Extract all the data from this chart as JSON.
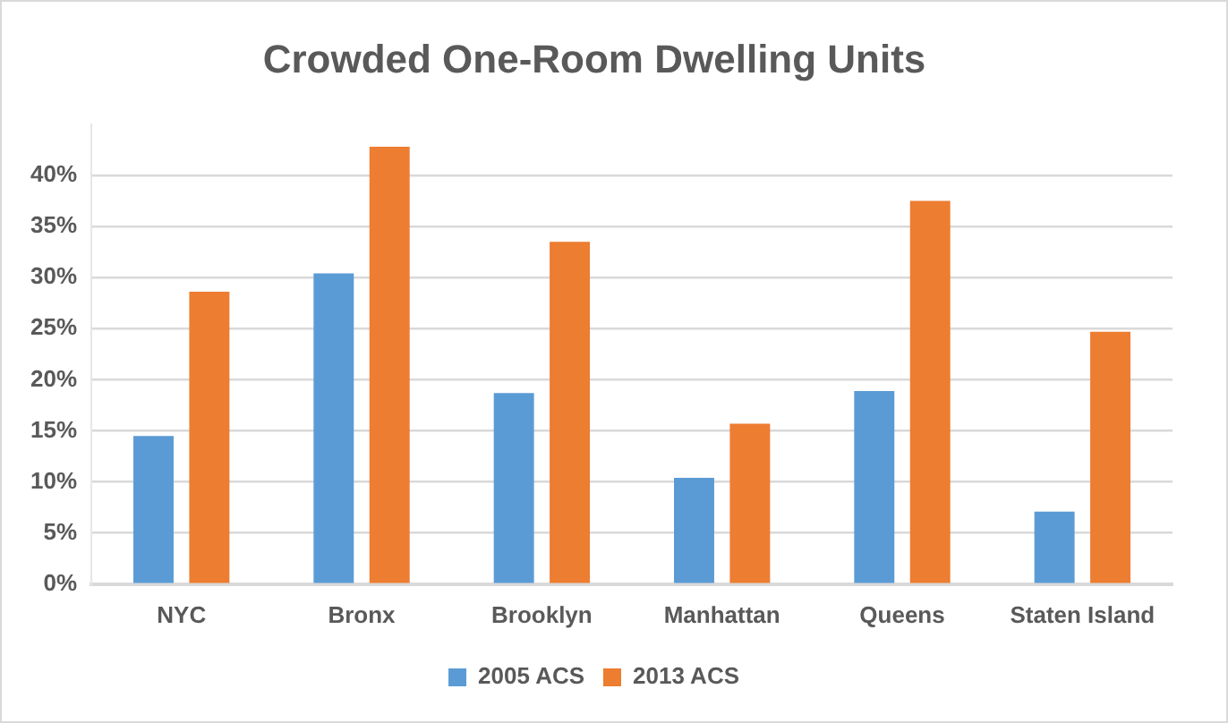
{
  "chart_data": {
    "type": "bar",
    "title": "Crowded One-Room Dwelling Units",
    "categories": [
      "NYC",
      "Bronx",
      "Brooklyn",
      "Manhattan",
      "Queens",
      "Staten Island"
    ],
    "series": [
      {
        "name": "2005 ACS",
        "color": "#5b9bd5",
        "values": [
          14.5,
          30.4,
          18.7,
          10.4,
          18.9,
          7.1
        ]
      },
      {
        "name": "2013 ACS",
        "color": "#ed7d31",
        "values": [
          28.6,
          42.8,
          33.5,
          15.7,
          37.5,
          24.7
        ]
      }
    ],
    "ylim": [
      0,
      45
    ],
    "yticks": [
      {
        "value": 0,
        "label": "0%"
      },
      {
        "value": 5,
        "label": "5%"
      },
      {
        "value": 10,
        "label": "10%"
      },
      {
        "value": 15,
        "label": "15%"
      },
      {
        "value": 20,
        "label": "20%"
      },
      {
        "value": 25,
        "label": "25%"
      },
      {
        "value": 30,
        "label": "30%"
      },
      {
        "value": 35,
        "label": "35%"
      },
      {
        "value": 40,
        "label": "40%"
      }
    ],
    "grid": "y",
    "legend": "bottom"
  }
}
